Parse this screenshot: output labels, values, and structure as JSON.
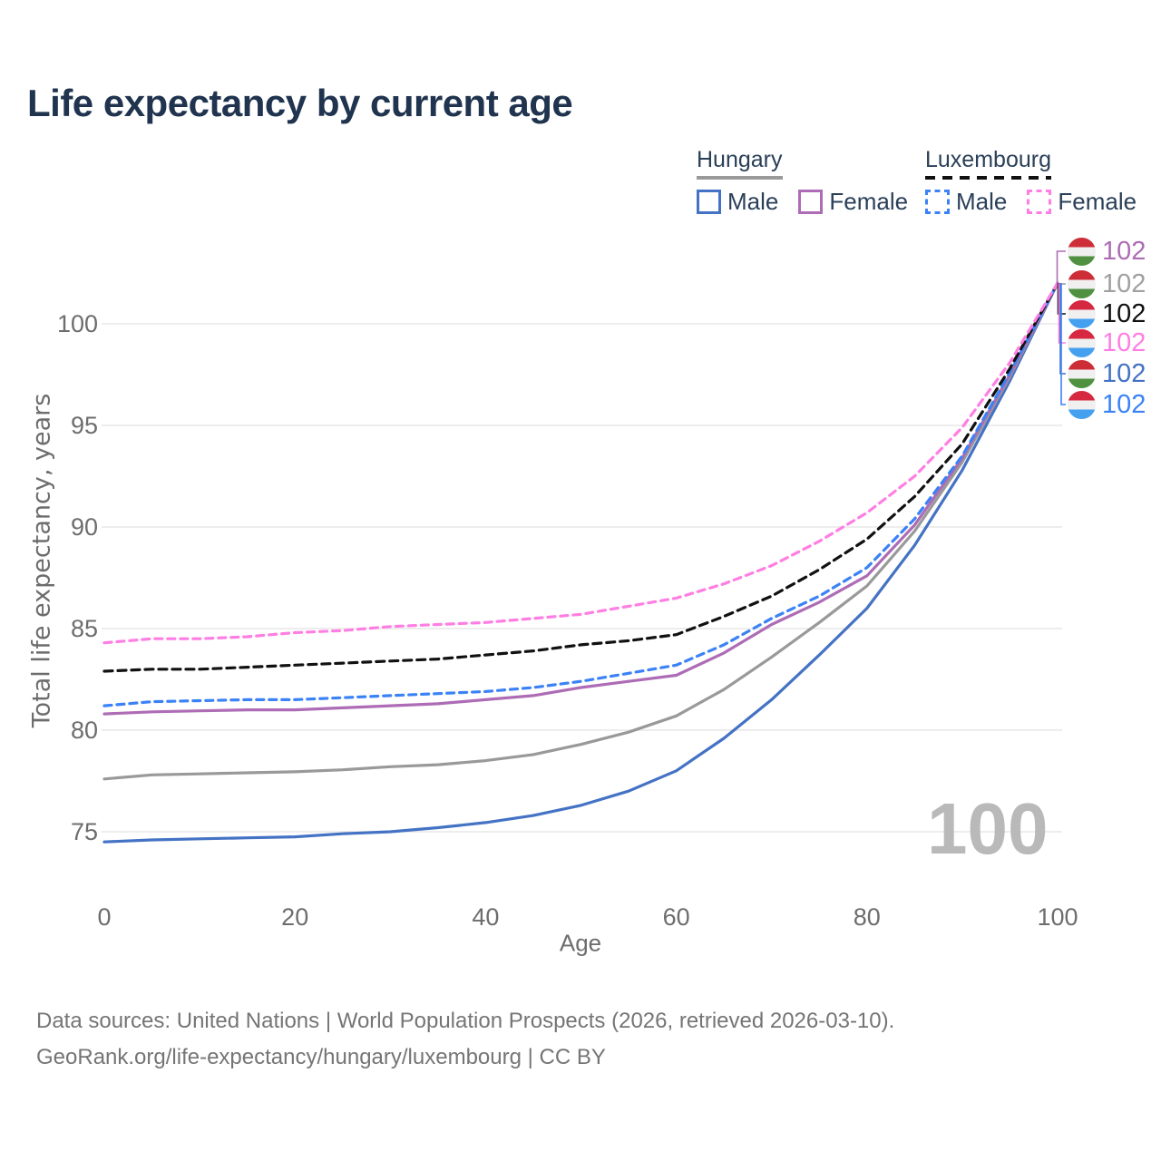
{
  "title": "Life expectancy by current age",
  "watermark": "100",
  "legend": {
    "groups": [
      {
        "id": "hungary",
        "label": "Hungary",
        "underline_color": "#9a9a9a",
        "underline_dashed": false,
        "items": [
          {
            "label": "Male",
            "color": "#4472c4",
            "dashed": false
          },
          {
            "label": "Female",
            "color": "#ad6cb5",
            "dashed": false
          }
        ]
      },
      {
        "id": "luxembourg",
        "label": "Luxembourg",
        "underline_color": "#111111",
        "underline_dashed": true,
        "items": [
          {
            "label": "Male",
            "color": "#3b82f6",
            "dashed": true
          },
          {
            "label": "Female",
            "color": "#ff7ee3",
            "dashed": true
          }
        ]
      }
    ]
  },
  "chart_data": {
    "type": "line",
    "title": "Life expectancy by current age",
    "xlabel": "Age",
    "ylabel": "Total life expectancy, years",
    "xlim": [
      0,
      100
    ],
    "ylim": [
      73.5,
      102.5
    ],
    "x_ticks": [
      0,
      20,
      40,
      60,
      80,
      100
    ],
    "y_ticks": [
      75,
      80,
      85,
      90,
      95,
      100
    ],
    "grid": "horizontal",
    "legend_position": "top-right",
    "x": [
      0,
      5,
      10,
      15,
      20,
      25,
      30,
      35,
      40,
      45,
      50,
      55,
      60,
      65,
      70,
      75,
      80,
      85,
      90,
      95,
      100
    ],
    "series": [
      {
        "name": "Hungary Male",
        "color": "#4472c4",
        "dash": null,
        "values": [
          74.5,
          74.6,
          74.65,
          74.7,
          74.75,
          74.9,
          75.0,
          75.2,
          75.45,
          75.8,
          76.3,
          77.0,
          78.0,
          79.6,
          81.5,
          83.7,
          86.0,
          89.1,
          92.8,
          97.2,
          102
        ]
      },
      {
        "name": "Hungary Total",
        "color": "#999999",
        "dash": null,
        "values": [
          77.6,
          77.8,
          77.85,
          77.9,
          77.95,
          78.05,
          78.2,
          78.3,
          78.5,
          78.8,
          79.3,
          79.9,
          80.7,
          82.0,
          83.6,
          85.3,
          87.1,
          89.8,
          93.2,
          97.4,
          102
        ]
      },
      {
        "name": "Hungary Female",
        "color": "#ad6cb5",
        "dash": null,
        "values": [
          80.8,
          80.9,
          80.95,
          81.0,
          81.0,
          81.1,
          81.2,
          81.3,
          81.5,
          81.7,
          82.1,
          82.4,
          82.7,
          83.8,
          85.2,
          86.3,
          87.6,
          90.1,
          93.4,
          97.5,
          102
        ]
      },
      {
        "name": "Luxembourg Male",
        "color": "#3b82f6",
        "dash": "8 6",
        "values": [
          81.2,
          81.4,
          81.45,
          81.5,
          81.5,
          81.6,
          81.7,
          81.8,
          81.9,
          82.1,
          82.4,
          82.8,
          83.2,
          84.2,
          85.5,
          86.6,
          88.0,
          90.4,
          93.5,
          97.6,
          102
        ]
      },
      {
        "name": "Luxembourg Total",
        "color": "#111111",
        "dash": "9 6",
        "values": [
          82.9,
          83.0,
          83.0,
          83.1,
          83.2,
          83.3,
          83.4,
          83.5,
          83.7,
          83.9,
          84.2,
          84.4,
          84.7,
          85.6,
          86.6,
          87.9,
          89.4,
          91.5,
          94.1,
          97.8,
          102
        ]
      },
      {
        "name": "Luxembourg Female",
        "color": "#ff7ee3",
        "dash": "8 6",
        "values": [
          84.3,
          84.5,
          84.5,
          84.6,
          84.8,
          84.9,
          85.1,
          85.2,
          85.3,
          85.5,
          85.7,
          86.1,
          86.5,
          87.2,
          88.1,
          89.3,
          90.7,
          92.5,
          94.9,
          98.1,
          102
        ]
      }
    ]
  },
  "end_labels": [
    {
      "flag": "hungary",
      "value": "102",
      "color": "#ad6cb5",
      "series": "Hungary Female"
    },
    {
      "flag": "hungary",
      "value": "102",
      "color": "#a0a0a0",
      "series": "Hungary Total"
    },
    {
      "flag": "luxembourg",
      "value": "102",
      "color": "#111111",
      "series": "Luxembourg Total"
    },
    {
      "flag": "luxembourg",
      "value": "102",
      "color": "#ff7ee3",
      "series": "Luxembourg Female"
    },
    {
      "flag": "hungary",
      "value": "102",
      "color": "#4472c4",
      "series": "Hungary Male"
    },
    {
      "flag": "luxembourg",
      "value": "102",
      "color": "#3b82f6",
      "series": "Luxembourg Male"
    }
  ],
  "flag_colors": {
    "hungary": [
      "#cd2d37",
      "#f0f0f0",
      "#4f9141"
    ],
    "luxembourg": [
      "#d62840",
      "#f0f0f0",
      "#46a0f0"
    ]
  },
  "footer": {
    "line1": "Data sources: United Nations | World Population Prospects (2026, retrieved 2026-03-10).",
    "line2": "GeoRank.org/life-expectancy/hungary/luxembourg | CC BY"
  }
}
